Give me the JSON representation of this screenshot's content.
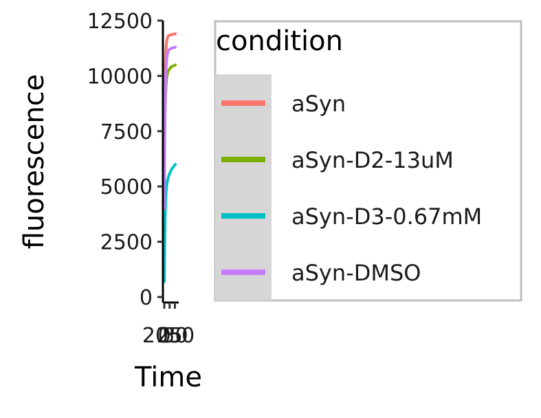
{
  "chart_data": {
    "type": "line",
    "xlabel": "Time",
    "ylabel": "fluorescence",
    "ylim": [
      0,
      12500
    ],
    "xlim": [
      0,
      55
    ],
    "y_ticks": [
      0,
      2500,
      5000,
      7500,
      10000,
      12500
    ],
    "y_tick_labels": [
      "0",
      "2500",
      "5000",
      "7500",
      "10000",
      "12500"
    ],
    "x_ticks": [
      0,
      25,
      50
    ],
    "x_tick_labels": [
      "0",
      "25",
      "50"
    ],
    "x_tick_labels_overlap_text": "2050",
    "legend": {
      "title": "condition",
      "placement": "right"
    },
    "series": [
      {
        "name": "aSyn",
        "color": "#F8766D",
        "x": [
          0,
          2,
          4,
          6,
          8,
          10,
          12,
          14,
          16,
          18,
          20,
          24,
          28,
          32,
          36,
          40,
          44,
          48,
          52
        ],
        "y": [
          6300,
          8600,
          10000,
          10800,
          11200,
          11450,
          11600,
          11700,
          11750,
          11800,
          11820,
          11840,
          11850,
          11860,
          11870,
          11880,
          11890,
          11900,
          11910
        ]
      },
      {
        "name": "aSyn-D2-13uM",
        "color": "#7CAE00",
        "x": [
          0,
          2,
          4,
          6,
          8,
          10,
          12,
          14,
          16,
          18,
          20,
          24,
          28,
          32,
          36,
          40,
          44,
          48,
          52
        ],
        "y": [
          5200,
          7300,
          8400,
          9100,
          9500,
          9800,
          9950,
          10050,
          10150,
          10200,
          10250,
          10300,
          10350,
          10400,
          10420,
          10440,
          10460,
          10480,
          10500
        ]
      },
      {
        "name": "aSyn-D3-0.67mM",
        "color": "#00BFC4",
        "x": [
          0,
          2,
          4,
          6,
          8,
          10,
          12,
          14,
          16,
          18,
          20,
          24,
          28,
          32,
          36,
          40,
          44,
          48,
          52
        ],
        "y": [
          700,
          2400,
          3600,
          4300,
          4700,
          4950,
          5100,
          5200,
          5300,
          5380,
          5450,
          5550,
          5650,
          5730,
          5800,
          5850,
          5900,
          5950,
          6000
        ]
      },
      {
        "name": "aSyn-DMSO",
        "color": "#C77CFF",
        "x": [
          0,
          2,
          4,
          6,
          8,
          10,
          12,
          14,
          16,
          18,
          20,
          24,
          28,
          32,
          36,
          40,
          44,
          48,
          52
        ],
        "y": [
          4000,
          7200,
          8900,
          9800,
          10300,
          10600,
          10800,
          10950,
          11050,
          11100,
          11150,
          11200,
          11220,
          11240,
          11260,
          11270,
          11280,
          11290,
          11300
        ]
      }
    ]
  }
}
